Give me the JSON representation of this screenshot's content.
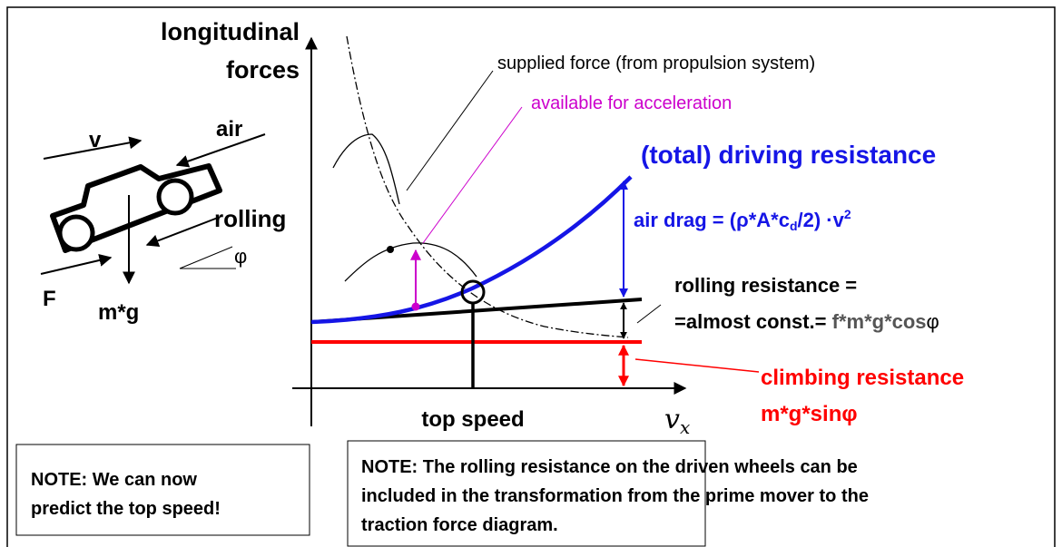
{
  "axis": {
    "y_label_lines": [
      "longitudinal",
      "forces"
    ],
    "x_label": "v",
    "x_label_sub": "x"
  },
  "car": {
    "speed": "v",
    "air": "air",
    "rolling": "rolling",
    "force": "F",
    "weight": "m*g",
    "angle": "φ"
  },
  "labels": {
    "supplied_force": "supplied force (from propulsion system)",
    "available": "available for acceleration",
    "total_resistance": "(total) driving resistance",
    "air_drag": {
      "main": "air drag = (ρ*A*c",
      "sub": "d",
      "mid": "/2) ·v",
      "sup": "2"
    },
    "rolling_resistance": {
      "line1": "rolling resistance =",
      "line2_black": "=almost const.= ",
      "line2_gray": "f*m*g*cos",
      "line2_phi": "φ"
    },
    "climbing_resistance": {
      "line1": "climbing resistance",
      "line2": "m*g*sinφ"
    },
    "top_speed": "top speed"
  },
  "notes": [
    {
      "lines": [
        "NOTE: We can now",
        "predict the top speed!"
      ]
    },
    {
      "lines": [
        "NOTE: The rolling resistance on the driven wheels can be",
        "included in the transformation from the prime mover to the",
        "traction force diagram."
      ]
    }
  ]
}
